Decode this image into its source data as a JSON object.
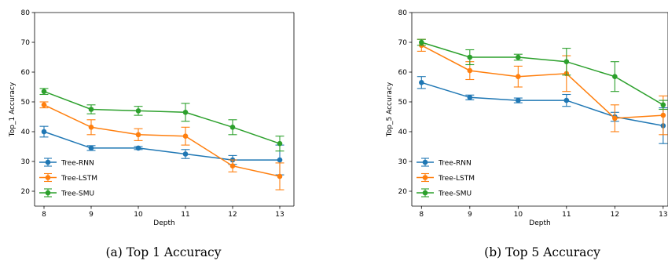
{
  "chart_data": [
    {
      "type": "line",
      "caption": "(a) Top 1 Accuracy",
      "xlabel": "Depth",
      "ylabel": "Top_1 Accuracy",
      "x": [
        8,
        9,
        10,
        11,
        12,
        13
      ],
      "xlim": [
        7.8,
        13.3
      ],
      "ylim": [
        15,
        80
      ],
      "xticks": [
        8,
        9,
        10,
        11,
        12,
        13
      ],
      "yticks": [
        20,
        30,
        40,
        50,
        60,
        70,
        80
      ],
      "grid": false,
      "legend": "lower-left",
      "series": [
        {
          "name": "Tree-RNN",
          "color": "#1f77b4",
          "values": [
            40.0,
            34.5,
            34.5,
            32.5,
            30.5,
            30.5
          ],
          "errors": [
            1.8,
            0.8,
            0.5,
            1.5,
            1.5,
            5.0
          ]
        },
        {
          "name": "Tree-LSTM",
          "color": "#ff7f0e",
          "values": [
            49.0,
            41.5,
            39.0,
            38.5,
            28.5,
            25.0
          ],
          "errors": [
            1.0,
            2.5,
            2.0,
            3.0,
            2.0,
            4.5
          ]
        },
        {
          "name": "Tree-SMU",
          "color": "#2ca02c",
          "values": [
            53.5,
            47.5,
            47.0,
            46.5,
            41.5,
            36.0
          ],
          "errors": [
            1.0,
            1.5,
            1.5,
            3.0,
            2.5,
            2.5
          ]
        }
      ]
    },
    {
      "type": "line",
      "caption": "(b) Top 5 Accuracy",
      "xlabel": "Depth",
      "ylabel": "Top_5 Accuracy",
      "x": [
        8,
        9,
        10,
        11,
        12,
        13
      ],
      "xlim": [
        7.8,
        13.1
      ],
      "ylim": [
        15,
        80
      ],
      "xticks": [
        8,
        9,
        10,
        11,
        12,
        13
      ],
      "yticks": [
        20,
        30,
        40,
        50,
        60,
        70,
        80
      ],
      "grid": false,
      "legend": "lower-left",
      "series": [
        {
          "name": "Tree-RNN",
          "color": "#1f77b4",
          "values": [
            56.5,
            51.5,
            50.5,
            50.5,
            45.0,
            42.0
          ],
          "errors": [
            2.0,
            0.8,
            0.8,
            2.0,
            1.5,
            6.0
          ]
        },
        {
          "name": "Tree-LSTM",
          "color": "#ff7f0e",
          "values": [
            69.0,
            60.5,
            58.5,
            59.5,
            44.5,
            45.5
          ],
          "errors": [
            2.0,
            3.0,
            3.5,
            6.0,
            4.5,
            6.5
          ]
        },
        {
          "name": "Tree-SMU",
          "color": "#2ca02c",
          "values": [
            70.0,
            65.0,
            65.0,
            63.5,
            58.5,
            49.0
          ],
          "errors": [
            1.0,
            2.5,
            1.0,
            4.5,
            5.0,
            1.5
          ]
        }
      ]
    }
  ]
}
